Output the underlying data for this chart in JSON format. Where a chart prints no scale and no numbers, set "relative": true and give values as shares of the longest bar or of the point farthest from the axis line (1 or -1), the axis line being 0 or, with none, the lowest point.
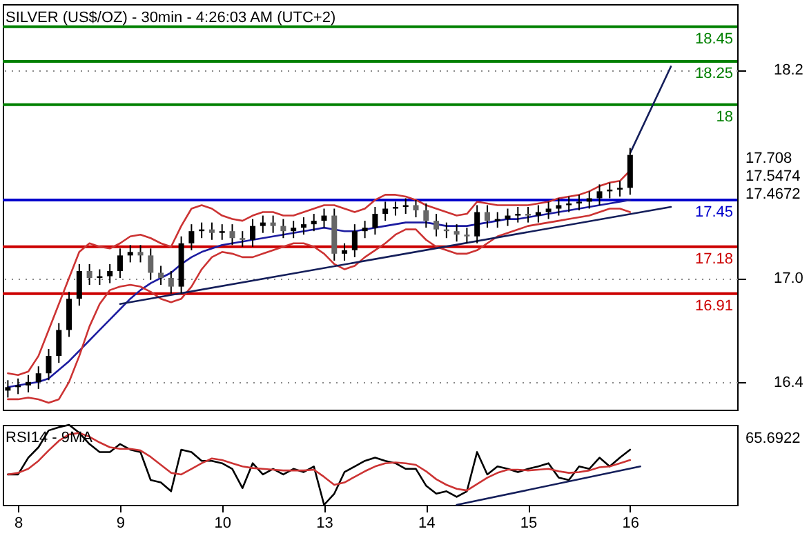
{
  "chart_data": [
    {
      "type": "candlestick",
      "title": "SILVER (US$/OZ) - 30min - 4:26:03 AM (UTC+2)",
      "categories": [
        null,
        "8",
        null,
        null,
        null,
        null,
        null,
        null,
        null,
        null,
        null,
        "9",
        null,
        null,
        null,
        null,
        null,
        null,
        null,
        null,
        null,
        "10",
        null,
        null,
        null,
        null,
        null,
        null,
        null,
        null,
        null,
        "13",
        null,
        null,
        null,
        null,
        null,
        null,
        null,
        null,
        null,
        "14",
        null,
        null,
        null,
        null,
        null,
        null,
        null,
        null,
        null,
        "15",
        null,
        null,
        null,
        null,
        null,
        null,
        null,
        null,
        null,
        "16",
        null,
        null,
        null,
        null,
        null,
        null,
        null,
        null,
        null,
        null
      ],
      "ohlc": [
        [
          16.35,
          16.41,
          16.31,
          16.37
        ],
        [
          16.37,
          16.42,
          16.33,
          16.38
        ],
        [
          16.38,
          16.44,
          16.34,
          16.4
        ],
        [
          16.4,
          16.49,
          16.36,
          16.45
        ],
        [
          16.45,
          16.59,
          16.41,
          16.55
        ],
        [
          16.55,
          16.74,
          16.51,
          16.7
        ],
        [
          16.7,
          16.92,
          16.66,
          16.88
        ],
        [
          16.88,
          17.08,
          16.84,
          17.04
        ],
        [
          17.04,
          17.08,
          16.96,
          17.0
        ],
        [
          17.0,
          17.05,
          16.96,
          17.01
        ],
        [
          17.01,
          17.08,
          16.97,
          17.04
        ],
        [
          17.04,
          17.17,
          17.0,
          17.13
        ],
        [
          17.13,
          17.19,
          17.09,
          17.15
        ],
        [
          17.15,
          17.19,
          17.09,
          17.13
        ],
        [
          17.13,
          17.17,
          16.99,
          17.03
        ],
        [
          17.03,
          17.07,
          16.96,
          17.0
        ],
        [
          17.0,
          17.04,
          16.91,
          16.95
        ],
        [
          16.95,
          17.24,
          16.91,
          17.2
        ],
        [
          17.2,
          17.31,
          17.16,
          17.27
        ],
        [
          17.27,
          17.32,
          17.23,
          17.28
        ],
        [
          17.28,
          17.32,
          17.22,
          17.26
        ],
        [
          17.26,
          17.31,
          17.22,
          17.27
        ],
        [
          17.27,
          17.31,
          17.19,
          17.23
        ],
        [
          17.23,
          17.27,
          17.18,
          17.22
        ],
        [
          17.22,
          17.34,
          17.18,
          17.3
        ],
        [
          17.3,
          17.36,
          17.26,
          17.32
        ],
        [
          17.32,
          17.36,
          17.26,
          17.3
        ],
        [
          17.3,
          17.34,
          17.23,
          17.27
        ],
        [
          17.27,
          17.33,
          17.23,
          17.29
        ],
        [
          17.29,
          17.35,
          17.25,
          17.31
        ],
        [
          17.31,
          17.37,
          17.27,
          17.33
        ],
        [
          17.33,
          17.4,
          17.29,
          17.36
        ],
        [
          17.36,
          17.4,
          17.1,
          17.14
        ],
        [
          17.14,
          17.2,
          17.1,
          17.16
        ],
        [
          17.16,
          17.31,
          17.12,
          17.27
        ],
        [
          17.27,
          17.33,
          17.23,
          17.29
        ],
        [
          17.29,
          17.41,
          17.25,
          17.37
        ],
        [
          17.37,
          17.44,
          17.33,
          17.4
        ],
        [
          17.4,
          17.44,
          17.36,
          17.41
        ],
        [
          17.41,
          17.46,
          17.37,
          17.42
        ],
        [
          17.42,
          17.45,
          17.35,
          17.39
        ],
        [
          17.39,
          17.43,
          17.29,
          17.33
        ],
        [
          17.33,
          17.37,
          17.24,
          17.28
        ],
        [
          17.28,
          17.32,
          17.23,
          17.27
        ],
        [
          17.27,
          17.31,
          17.21,
          17.25
        ],
        [
          17.25,
          17.29,
          17.2,
          17.24
        ],
        [
          17.24,
          17.42,
          17.2,
          17.38
        ],
        [
          17.38,
          17.42,
          17.29,
          17.33
        ],
        [
          17.33,
          17.38,
          17.29,
          17.34
        ],
        [
          17.34,
          17.4,
          17.3,
          17.36
        ],
        [
          17.36,
          17.41,
          17.32,
          17.37
        ],
        [
          17.37,
          17.41,
          17.32,
          17.36
        ],
        [
          17.36,
          17.42,
          17.32,
          17.38
        ],
        [
          17.38,
          17.44,
          17.34,
          17.4
        ],
        [
          17.4,
          17.46,
          17.36,
          17.42
        ],
        [
          17.42,
          17.47,
          17.38,
          17.43
        ],
        [
          17.43,
          17.48,
          17.39,
          17.44
        ],
        [
          17.44,
          17.5,
          17.4,
          17.46
        ],
        [
          17.46,
          17.54,
          17.42,
          17.5
        ],
        [
          17.5,
          17.55,
          17.46,
          17.51
        ],
        [
          17.51,
          17.56,
          17.47,
          17.52
        ],
        [
          17.52,
          17.75,
          17.48,
          17.71
        ],
        null,
        null,
        null,
        null,
        null,
        null,
        null,
        null,
        null,
        null
      ],
      "series": [
        {
          "type": "line",
          "color": "#1c1ca0",
          "values": [
            16.37,
            16.38,
            16.39,
            16.4,
            16.42,
            16.47,
            16.52,
            16.58,
            16.64,
            16.7,
            16.76,
            16.82,
            16.88,
            16.93,
            16.97,
            17.0,
            17.03,
            17.08,
            17.12,
            17.15,
            17.17,
            17.19,
            17.2,
            17.21,
            17.22,
            17.23,
            17.24,
            17.25,
            17.26,
            17.27,
            17.28,
            17.29,
            17.28,
            17.27,
            17.27,
            17.28,
            17.29,
            17.3,
            17.31,
            17.32,
            17.32,
            17.32,
            17.31,
            17.3,
            17.3,
            17.3,
            17.31,
            17.32,
            17.33,
            17.34,
            17.34,
            17.35,
            17.36,
            17.37,
            17.38,
            17.39,
            17.4,
            17.41,
            17.42,
            17.43,
            17.44,
            17.45,
            null,
            null,
            null,
            null,
            null,
            null,
            null,
            null,
            null,
            null
          ]
        },
        {
          "type": "line",
          "color": "#cc3333",
          "values": [
            16.45,
            16.44,
            16.46,
            16.55,
            16.7,
            16.85,
            17.0,
            17.15,
            17.2,
            17.18,
            17.17,
            17.2,
            17.24,
            17.25,
            17.23,
            17.2,
            17.18,
            17.3,
            17.4,
            17.42,
            17.4,
            17.36,
            17.34,
            17.33,
            17.36,
            17.38,
            17.38,
            17.36,
            17.36,
            17.38,
            17.4,
            17.42,
            17.42,
            17.4,
            17.38,
            17.4,
            17.45,
            17.48,
            17.48,
            17.47,
            17.45,
            17.42,
            17.4,
            17.38,
            17.36,
            17.37,
            17.44,
            17.43,
            17.42,
            17.42,
            17.42,
            17.42,
            17.43,
            17.44,
            17.46,
            17.47,
            17.48,
            17.5,
            17.53,
            17.55,
            17.56,
            17.62,
            null,
            null,
            null,
            null,
            null,
            null,
            null,
            null,
            null,
            null
          ]
        },
        {
          "type": "line",
          "color": "#cc3333",
          "values": [
            16.3,
            16.3,
            16.31,
            16.3,
            16.28,
            16.3,
            16.4,
            16.55,
            16.72,
            16.85,
            16.93,
            16.95,
            16.96,
            16.95,
            16.92,
            16.88,
            16.86,
            16.88,
            16.95,
            17.05,
            17.12,
            17.15,
            17.14,
            17.12,
            17.12,
            17.14,
            17.16,
            17.18,
            17.2,
            17.2,
            17.18,
            17.14,
            17.08,
            17.05,
            17.07,
            17.12,
            17.16,
            17.2,
            17.25,
            17.28,
            17.28,
            17.22,
            17.18,
            17.16,
            17.14,
            17.14,
            17.16,
            17.2,
            17.24,
            17.26,
            17.28,
            17.3,
            17.31,
            17.32,
            17.33,
            17.34,
            17.35,
            17.36,
            17.38,
            17.4,
            17.4,
            17.38,
            null,
            null,
            null,
            null,
            null,
            null,
            null,
            null,
            null,
            null
          ]
        },
        {
          "type": "line",
          "color": "#141e5a",
          "values": [
            null,
            null,
            null,
            null,
            null,
            null,
            null,
            null,
            null,
            null,
            null,
            16.85,
            null,
            null,
            null,
            null,
            null,
            null,
            null,
            null,
            null,
            null,
            null,
            null,
            null,
            null,
            null,
            null,
            null,
            null,
            null,
            null,
            null,
            null,
            null,
            null,
            null,
            null,
            null,
            null,
            null,
            null,
            null,
            null,
            null,
            null,
            null,
            null,
            null,
            null,
            null,
            null,
            null,
            null,
            null,
            null,
            null,
            null,
            null,
            null,
            null,
            null,
            null,
            null,
            null,
            17.41,
            null,
            null,
            null,
            null,
            null,
            null
          ]
        },
        {
          "type": "line",
          "color": "#141e5a",
          "values": [
            null,
            null,
            null,
            null,
            null,
            null,
            null,
            null,
            null,
            null,
            null,
            null,
            null,
            null,
            null,
            null,
            null,
            null,
            null,
            null,
            null,
            null,
            null,
            null,
            null,
            null,
            null,
            null,
            null,
            null,
            null,
            null,
            null,
            null,
            null,
            null,
            null,
            null,
            null,
            null,
            null,
            null,
            null,
            null,
            null,
            null,
            null,
            null,
            null,
            null,
            null,
            null,
            null,
            null,
            null,
            null,
            null,
            null,
            null,
            null,
            null,
            17.72,
            null,
            null,
            null,
            18.22,
            null,
            null,
            null,
            null,
            null,
            null
          ]
        }
      ],
      "ylim": [
        16.24,
        18.58
      ],
      "yticks": [
        16.4,
        {
          "value": 17,
          "label": "17.0"
        },
        18.2
      ],
      "grid": "y",
      "tick_labels": "y",
      "ref_lines": [
        {
          "axis": "y",
          "value": 18.45,
          "label": "18.45",
          "color": "#008000"
        },
        {
          "axis": "y",
          "value": 18.25,
          "label": "18.25",
          "color": "#008000"
        },
        {
          "axis": "y",
          "value": 18,
          "label": "18",
          "color": "#008000"
        },
        {
          "axis": "y",
          "value": 17.45,
          "label": "17.45",
          "color": "#0000cc"
        },
        {
          "axis": "y",
          "value": 17.18,
          "label": "17.18",
          "color": "#cc0000"
        },
        {
          "axis": "y",
          "value": 16.91,
          "label": "16.91",
          "color": "#cc0000"
        }
      ],
      "annotations": [
        "17.708",
        "17.5474",
        "17.4672"
      ]
    },
    {
      "type": "line",
      "title": "RSI14 - 9MA",
      "categories": [
        null,
        "8",
        null,
        null,
        null,
        null,
        null,
        null,
        null,
        null,
        null,
        "9",
        null,
        null,
        null,
        null,
        null,
        null,
        null,
        null,
        null,
        "10",
        null,
        null,
        null,
        null,
        null,
        null,
        null,
        null,
        null,
        "13",
        null,
        null,
        null,
        null,
        null,
        null,
        null,
        null,
        null,
        "14",
        null,
        null,
        null,
        null,
        null,
        null,
        null,
        null,
        null,
        "15",
        null,
        null,
        null,
        null,
        null,
        null,
        null,
        null,
        null,
        "16",
        null,
        null,
        null,
        null,
        null,
        null,
        null,
        null,
        null,
        null
      ],
      "relative": true,
      "series": [
        {
          "color": "#000000",
          "values": [
            0.38,
            0.38,
            0.59,
            0.72,
            0.93,
            0.97,
            1.0,
            0.9,
            0.76,
            0.66,
            0.66,
            0.76,
            0.69,
            0.66,
            0.31,
            0.28,
            0.17,
            0.69,
            0.66,
            0.55,
            0.55,
            0.52,
            0.45,
            0.21,
            0.52,
            0.38,
            0.45,
            0.38,
            0.45,
            0.41,
            0.48,
            0,
            0.14,
            0.41,
            0.48,
            0.55,
            0.59,
            0.55,
            0.52,
            0.45,
            0.45,
            0.24,
            0.14,
            0.17,
            0.1,
            0.17,
            0.66,
            0.38,
            0.48,
            0.45,
            0.41,
            0.45,
            0.48,
            0.52,
            0.34,
            0.31,
            0.48,
            0.45,
            0.59,
            0.48,
            0.59,
            0.69,
            null,
            null,
            null,
            null,
            null,
            null,
            null,
            null,
            null,
            null
          ]
        },
        {
          "color": "#cc3333",
          "values": [
            0.38,
            0.4,
            0.45,
            0.55,
            0.68,
            0.8,
            0.88,
            0.9,
            0.85,
            0.78,
            0.72,
            0.7,
            0.7,
            0.68,
            0.6,
            0.5,
            0.4,
            0.38,
            0.45,
            0.52,
            0.58,
            0.56,
            0.52,
            0.48,
            0.46,
            0.45,
            0.44,
            0.43,
            0.43,
            0.43,
            0.44,
            0.35,
            0.25,
            0.28,
            0.35,
            0.42,
            0.48,
            0.52,
            0.53,
            0.52,
            0.5,
            0.42,
            0.32,
            0.25,
            0.2,
            0.18,
            0.26,
            0.34,
            0.4,
            0.44,
            0.44,
            0.43,
            0.44,
            0.45,
            0.42,
            0.4,
            0.41,
            0.43,
            0.47,
            0.48,
            0.52,
            0.56,
            null,
            null,
            null,
            null,
            null,
            null,
            null,
            null,
            null,
            null
          ]
        },
        {
          "color": "#141e5a",
          "values": [
            null,
            null,
            null,
            null,
            null,
            null,
            null,
            null,
            null,
            null,
            null,
            null,
            null,
            null,
            null,
            null,
            null,
            null,
            null,
            null,
            null,
            null,
            null,
            null,
            null,
            null,
            null,
            null,
            null,
            null,
            null,
            null,
            null,
            null,
            null,
            null,
            null,
            null,
            null,
            null,
            null,
            null,
            null,
            null,
            0,
            null,
            null,
            null,
            null,
            null,
            null,
            null,
            null,
            null,
            null,
            null,
            null,
            null,
            null,
            null,
            null,
            null,
            0.48,
            null,
            null,
            null,
            null,
            null,
            null,
            null,
            null,
            null
          ]
        }
      ],
      "tick_labels": "x",
      "annotations": [
        "65.6922"
      ]
    }
  ]
}
